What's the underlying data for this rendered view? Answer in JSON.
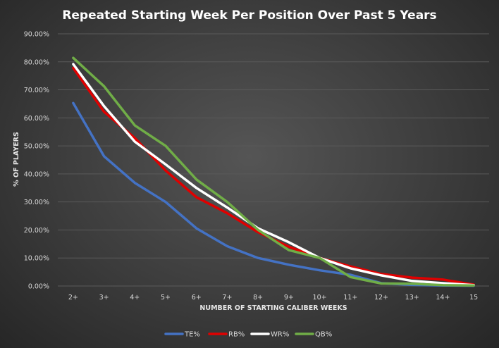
{
  "chart_data": {
    "type": "line",
    "title": "Repeated Starting Week Per Position Over Past 5 Years",
    "xlabel": "NUMBER OF STARTING CALIBER WEEKS",
    "ylabel": "% OF PLAYERS",
    "categories": [
      "2+",
      "3+",
      "4+",
      "5+",
      "6+",
      "7+",
      "8+",
      "9+",
      "10+",
      "11+",
      "12+",
      "13+",
      "14+",
      "15"
    ],
    "ylim": [
      0,
      90
    ],
    "y_ticks": [
      "0.00%",
      "10.00%",
      "20.00%",
      "30.00%",
      "40.00%",
      "50.00%",
      "60.00%",
      "70.00%",
      "80.00%",
      "90.00%"
    ],
    "grid": true,
    "legend_position": "bottom",
    "series": [
      {
        "name": "TE%",
        "color": "#4472c4",
        "values": [
          65.3,
          46.3,
          36.8,
          30.0,
          20.6,
          14.2,
          10.0,
          7.6,
          5.6,
          4.0,
          1.0,
          0.4,
          0.2,
          0.1
        ]
      },
      {
        "name": "RB%",
        "color": "#e00000",
        "values": [
          77.8,
          62.2,
          52.8,
          41.2,
          31.7,
          26.0,
          19.2,
          14.0,
          10.0,
          7.0,
          4.3,
          3.0,
          2.3,
          0.5
        ]
      },
      {
        "name": "WR%",
        "color": "#ffffff",
        "values": [
          79.2,
          64.2,
          51.5,
          43.4,
          35.0,
          28.0,
          20.6,
          15.6,
          10.0,
          6.3,
          3.8,
          1.8,
          1.0,
          0.3
        ]
      },
      {
        "name": "QB%",
        "color": "#70ad47",
        "values": [
          81.4,
          71.3,
          57.3,
          50.0,
          38.0,
          30.0,
          20.0,
          12.8,
          10.0,
          3.2,
          0.9,
          0.8,
          0.3,
          0.2
        ]
      }
    ]
  }
}
